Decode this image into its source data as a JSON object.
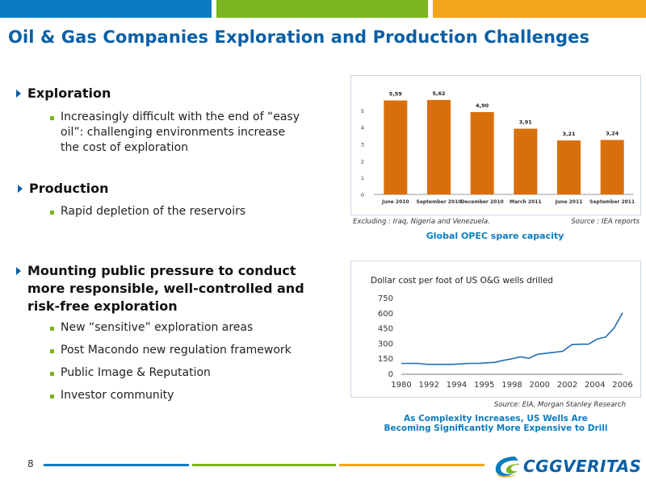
{
  "title": "Oil & Gas Companies Exploration and Production Challenges",
  "page_number": "8",
  "colors": {
    "blue": "#0b7cc1",
    "green": "#7ab51d",
    "orange": "#f2a51a",
    "bar": "#d96f0c"
  },
  "bullets": {
    "exploration": {
      "heading": "Exploration",
      "sub": [
        "Increasingly difficult with the end of “easy oil”: challenging environments increase the cost of exploration"
      ]
    },
    "production": {
      "heading": "Production",
      "sub": [
        "Rapid depletion of the reservoirs"
      ]
    },
    "pressure": {
      "heading": "Mounting public pressure to conduct more responsible, well-controlled and risk-free exploration",
      "sub": [
        "New “sensitive” exploration areas",
        "Post Macondo new regulation framework",
        "Public Image & Reputation",
        "Investor community"
      ]
    }
  },
  "charts_meta": {
    "top": {
      "note_left": "Excluding  : Iraq, Nigeria and Venezuela.",
      "note_right": "Source : IEA reports",
      "caption": "Global OPEC spare capacity"
    },
    "bottom": {
      "source": "Source: EIA, Morgan Stanley Research",
      "caption": "As Complexity Increases, US Wells Are Becoming Significantly More Expensive to Drill"
    }
  },
  "logo": {
    "text": "CGGVERITAS"
  },
  "chart_data": [
    {
      "type": "bar",
      "title": "",
      "categories": [
        "June 2010",
        "September 2010",
        "December 2010",
        "March 2011",
        "June 2011",
        "September 2011"
      ],
      "values": [
        5.59,
        5.62,
        4.9,
        3.91,
        3.21,
        3.24
      ],
      "value_labels": [
        "5,59",
        "5,62",
        "4,90",
        "3,91",
        "3,21",
        "3,24"
      ],
      "ylim": [
        0,
        6
      ],
      "yticks": [
        "0",
        "1",
        "2",
        "3",
        "4",
        "5"
      ],
      "grid": false
    },
    {
      "type": "line",
      "title": "Dollar cost per foot of US O&G wells drilled",
      "x": [
        1980,
        1981,
        1982,
        1983,
        1984,
        1985,
        1986,
        1987,
        1988,
        1989,
        1990,
        1991,
        1992,
        1993,
        1994,
        1995,
        1996,
        1997,
        1998,
        1999,
        2000,
        2001,
        2002,
        2003,
        2004,
        2005,
        2006
      ],
      "values": [
        100,
        100,
        100,
        90,
        90,
        90,
        90,
        95,
        100,
        100,
        105,
        110,
        130,
        145,
        165,
        150,
        190,
        200,
        210,
        220,
        285,
        290,
        290,
        340,
        360,
        450,
        600
      ],
      "xticks": [
        "1980",
        "1992",
        "1994",
        "1995",
        "1998",
        "2000",
        "2002",
        "2004",
        "2006"
      ],
      "yticks": [
        "0",
        "150",
        "300",
        "450",
        "600",
        "750"
      ],
      "ylim": [
        0,
        750
      ],
      "grid": false
    }
  ]
}
